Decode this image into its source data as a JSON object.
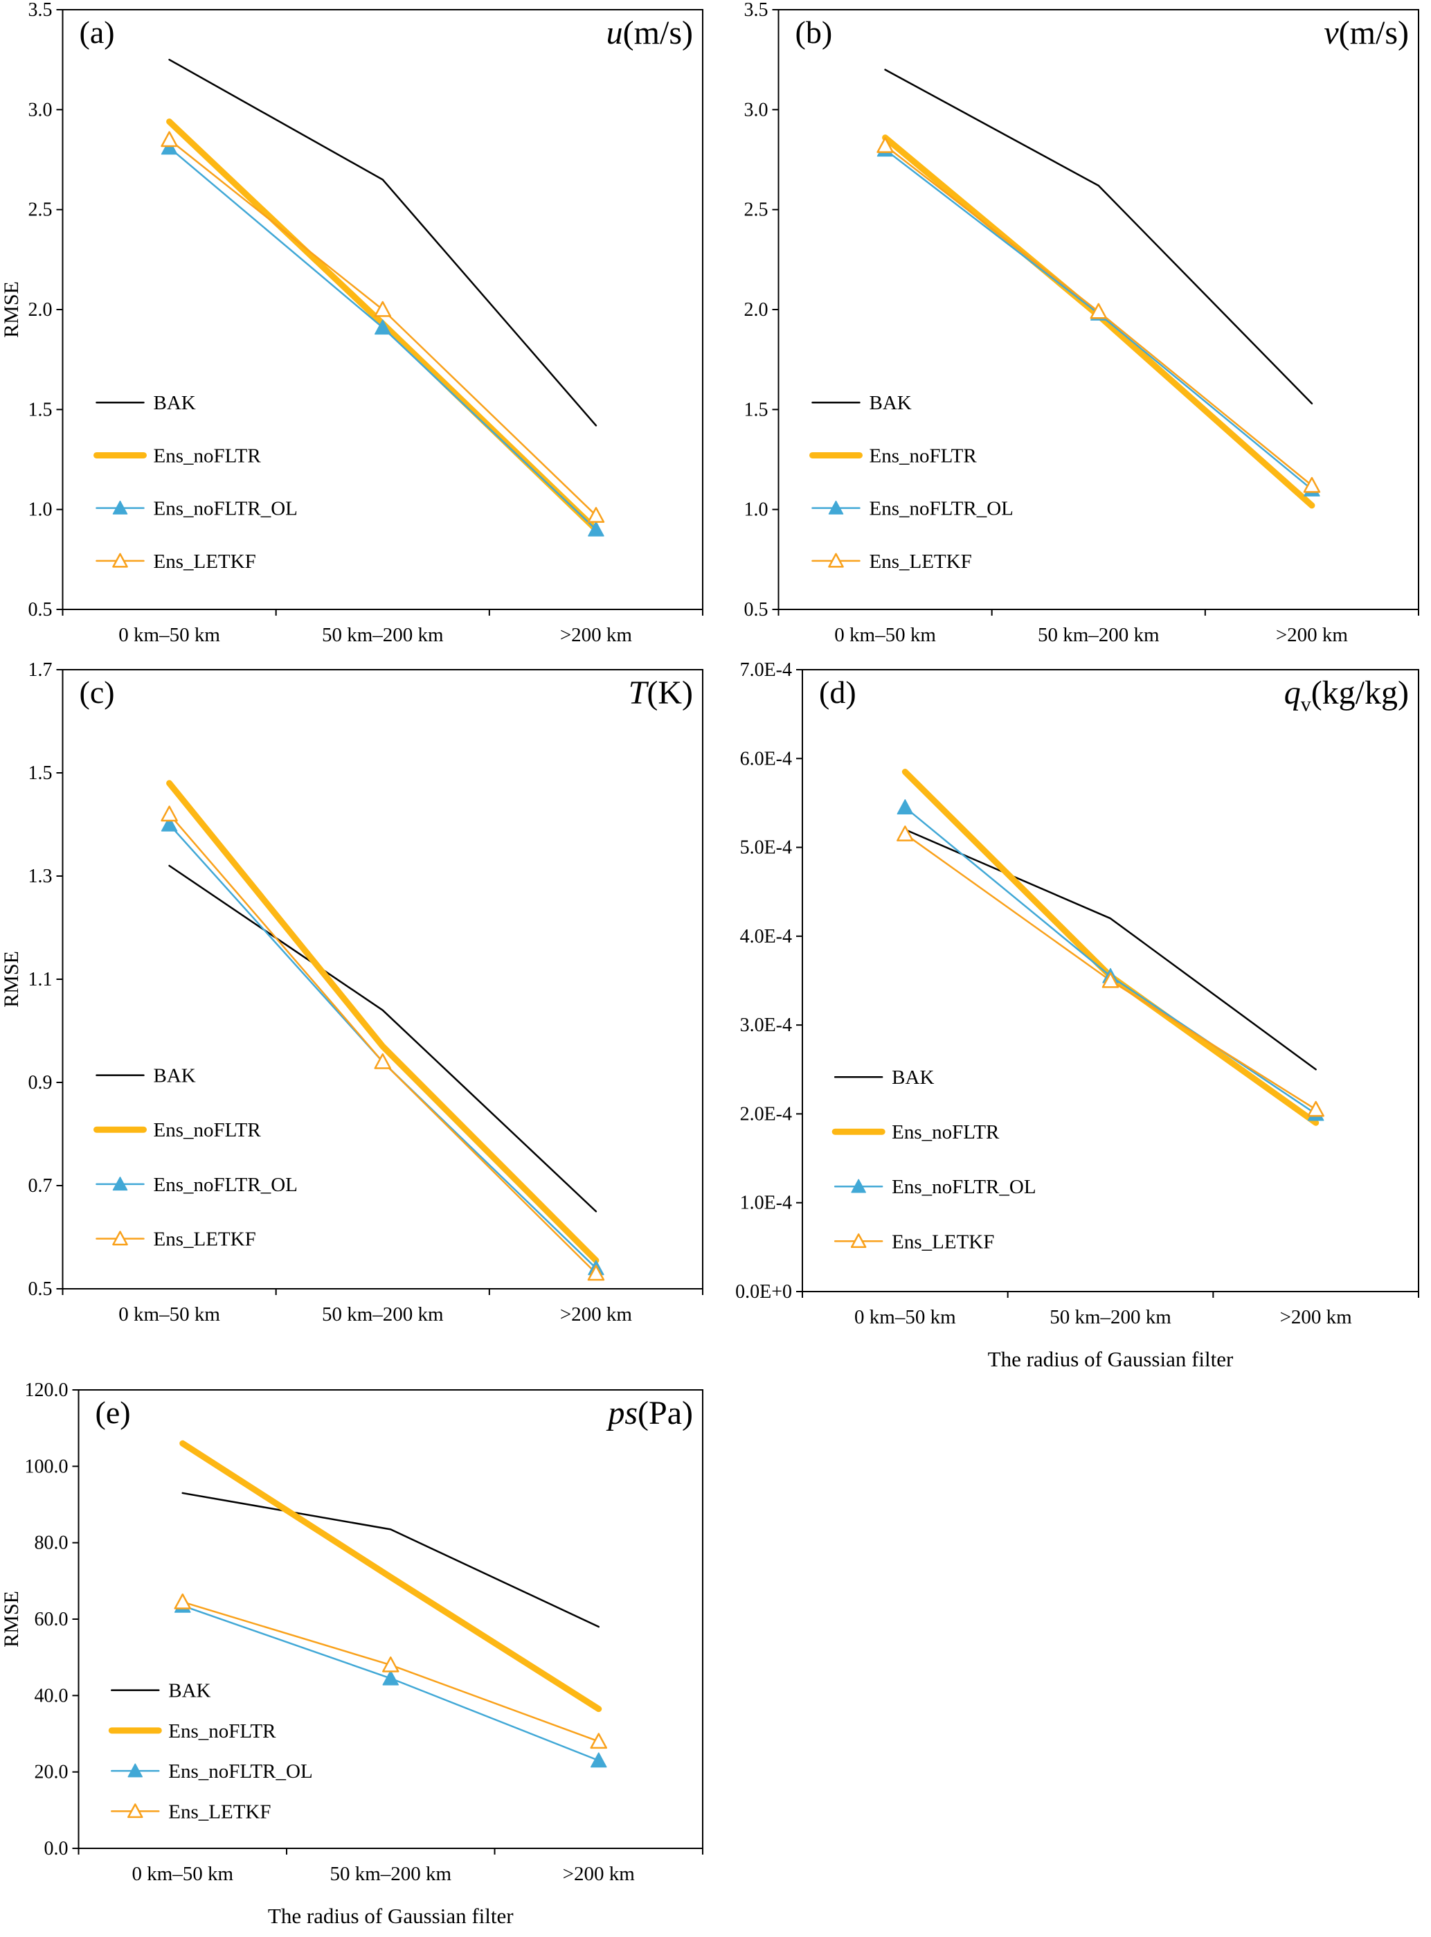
{
  "page": {
    "background": "#ffffff"
  },
  "styles": {
    "series": {
      "BAK": {
        "color": "#000000",
        "width": 2.5,
        "marker": "none"
      },
      "Ens_noFLTR": {
        "color": "#FDB714",
        "width": 9,
        "marker": "none"
      },
      "Ens_noFLTR_OL": {
        "color": "#41A8D6",
        "width": 2.5,
        "marker": "triangle-filled"
      },
      "Ens_LETKF": {
        "color": "#F9A11B",
        "width": 2.5,
        "marker": "triangle-open"
      }
    }
  },
  "chart_data": [
    {
      "type": "line",
      "panel_label": "(a)",
      "var_main": "u",
      "var_sub": "",
      "var_unit": "(m/s)",
      "ylabel": "RMSE",
      "xlabel": "",
      "categories": [
        "0 km–50 km",
        "50 km–200 km",
        ">200 km"
      ],
      "ylim": [
        0.5,
        3.5
      ],
      "yticks": [
        0.5,
        1.0,
        1.5,
        2.0,
        2.5,
        3.0,
        3.5
      ],
      "ytick_labels": [
        "0.5",
        "1.0",
        "1.5",
        "2.0",
        "2.5",
        "3.0",
        "3.5"
      ],
      "legend": [
        "BAK",
        "Ens_noFLTR",
        "Ens_noFLTR_OL",
        "Ens_LETKF"
      ],
      "series": [
        {
          "name": "BAK",
          "values": [
            3.25,
            2.65,
            1.42
          ]
        },
        {
          "name": "Ens_noFLTR",
          "values": [
            2.94,
            1.93,
            0.9
          ]
        },
        {
          "name": "Ens_noFLTR_OL",
          "values": [
            2.81,
            1.91,
            0.9
          ]
        },
        {
          "name": "Ens_LETKF",
          "values": [
            2.85,
            2.0,
            0.97
          ]
        }
      ]
    },
    {
      "type": "line",
      "panel_label": "(b)",
      "var_main": "v",
      "var_sub": "",
      "var_unit": "(m/s)",
      "ylabel": "",
      "xlabel": "",
      "categories": [
        "0 km–50 km",
        "50 km–200 km",
        ">200 km"
      ],
      "ylim": [
        0.5,
        3.5
      ],
      "yticks": [
        0.5,
        1.0,
        1.5,
        2.0,
        2.5,
        3.0,
        3.5
      ],
      "ytick_labels": [
        "0.5",
        "1.0",
        "1.5",
        "2.0",
        "2.5",
        "3.0",
        "3.5"
      ],
      "legend": [
        "BAK",
        "Ens_noFLTR",
        "Ens_noFLTR_OL",
        "Ens_LETKF"
      ],
      "series": [
        {
          "name": "BAK",
          "values": [
            3.2,
            2.62,
            1.53
          ]
        },
        {
          "name": "Ens_noFLTR",
          "values": [
            2.86,
            1.97,
            1.02
          ]
        },
        {
          "name": "Ens_noFLTR_OL",
          "values": [
            2.8,
            1.98,
            1.1
          ]
        },
        {
          "name": "Ens_LETKF",
          "values": [
            2.82,
            1.99,
            1.12
          ]
        }
      ]
    },
    {
      "type": "line",
      "panel_label": "(c)",
      "var_main": "T",
      "var_sub": "",
      "var_unit": "(K)",
      "ylabel": "RMSE",
      "xlabel": "",
      "categories": [
        "0 km–50 km",
        "50 km–200 km",
        ">200 km"
      ],
      "ylim": [
        0.5,
        1.7
      ],
      "yticks": [
        0.5,
        0.7,
        0.9,
        1.1,
        1.3,
        1.5,
        1.7
      ],
      "ytick_labels": [
        "0.5",
        "0.7",
        "0.9",
        "1.1",
        "1.3",
        "1.5",
        "1.7"
      ],
      "legend": [
        "BAK",
        "Ens_noFLTR",
        "Ens_noFLTR_OL",
        "Ens_LETKF"
      ],
      "series": [
        {
          "name": "BAK",
          "values": [
            1.32,
            1.04,
            0.65
          ]
        },
        {
          "name": "Ens_noFLTR",
          "values": [
            1.48,
            0.97,
            0.555
          ]
        },
        {
          "name": "Ens_noFLTR_OL",
          "values": [
            1.4,
            0.94,
            0.54
          ]
        },
        {
          "name": "Ens_LETKF",
          "values": [
            1.42,
            0.94,
            0.53
          ]
        }
      ]
    },
    {
      "type": "line",
      "panel_label": "(d)",
      "var_main": "q",
      "var_sub": "v",
      "var_unit": "(kg/kg)",
      "ylabel": "",
      "xlabel": "The radius of Gaussian filter",
      "categories": [
        "0 km–50 km",
        "50 km–200 km",
        ">200 km"
      ],
      "ylim": [
        0,
        0.0007
      ],
      "yticks": [
        0,
        0.0001,
        0.0002,
        0.0003,
        0.0004,
        0.0005,
        0.0006,
        0.0007
      ],
      "ytick_labels": [
        "0.0E+0",
        "1.0E-4",
        "2.0E-4",
        "3.0E-4",
        "4.0E-4",
        "5.0E-4",
        "6.0E-4",
        "7.0E-4"
      ],
      "legend": [
        "BAK",
        "Ens_noFLTR",
        "Ens_noFLTR_OL",
        "Ens_LETKF"
      ],
      "series": [
        {
          "name": "BAK",
          "values": [
            0.00052,
            0.00042,
            0.00025
          ]
        },
        {
          "name": "Ens_noFLTR",
          "values": [
            0.000585,
            0.000355,
            0.00019
          ]
        },
        {
          "name": "Ens_noFLTR_OL",
          "values": [
            0.000545,
            0.000355,
            0.0002
          ]
        },
        {
          "name": "Ens_LETKF",
          "values": [
            0.000515,
            0.00035,
            0.000205
          ]
        }
      ]
    },
    {
      "type": "line",
      "panel_label": "(e)",
      "var_main": "ps",
      "var_sub": "",
      "var_unit": "(Pa)",
      "ylabel": "RMSE",
      "xlabel": "The radius of Gaussian filter",
      "categories": [
        "0 km–50 km",
        "50 km–200 km",
        ">200 km"
      ],
      "ylim": [
        0,
        120
      ],
      "yticks": [
        0,
        20,
        40,
        60,
        80,
        100,
        120
      ],
      "ytick_labels": [
        "0.0",
        "20.0",
        "40.0",
        "60.0",
        "80.0",
        "100.0",
        "120.0"
      ],
      "legend": [
        "BAK",
        "Ens_noFLTR",
        "Ens_noFLTR_OL",
        "Ens_LETKF"
      ],
      "series": [
        {
          "name": "BAK",
          "values": [
            93,
            83.5,
            58
          ]
        },
        {
          "name": "Ens_noFLTR",
          "values": [
            106,
            71,
            36.5
          ]
        },
        {
          "name": "Ens_noFLTR_OL",
          "values": [
            63.5,
            44.5,
            23
          ]
        },
        {
          "name": "Ens_LETKF",
          "values": [
            64.5,
            48,
            28
          ]
        }
      ]
    }
  ]
}
